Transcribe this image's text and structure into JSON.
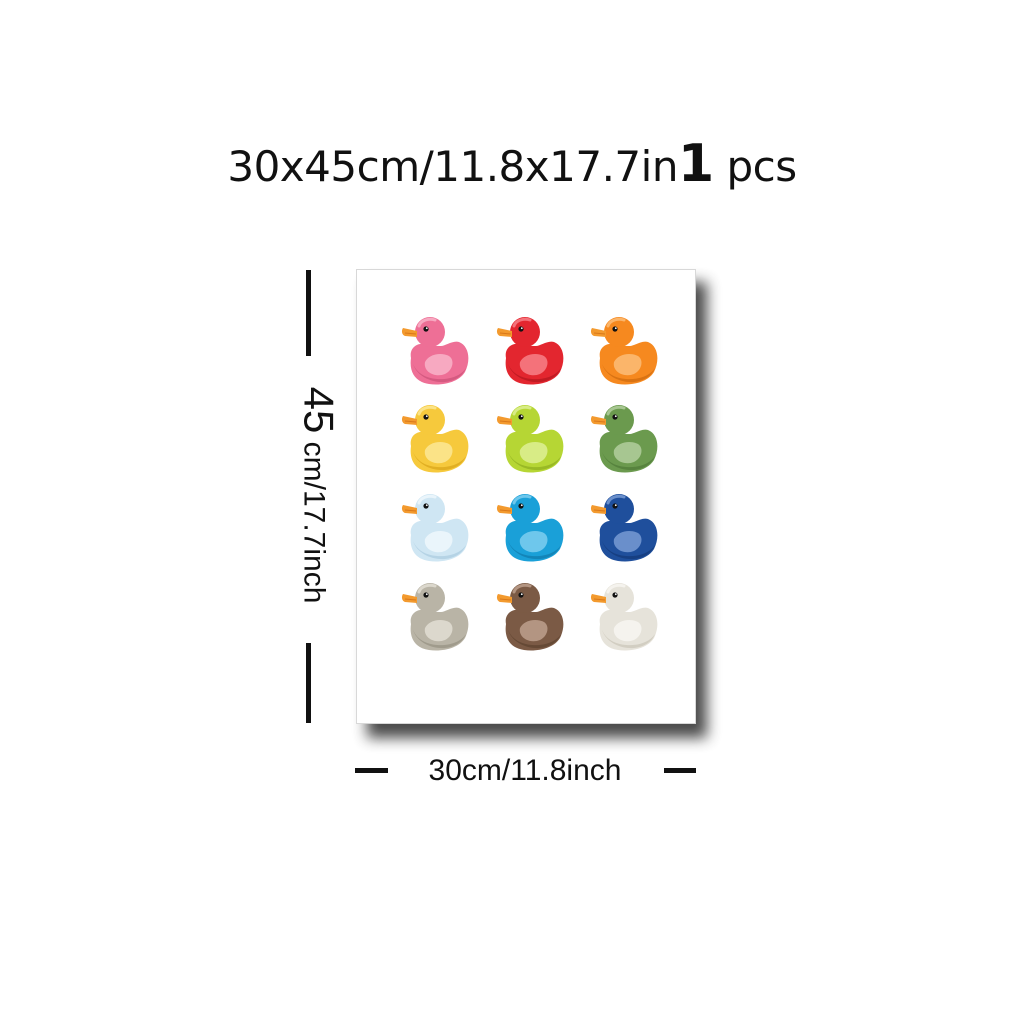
{
  "header": {
    "size_text": "30x45cm/11.8x17.7in",
    "quantity": "1",
    "unit": "pcs"
  },
  "dimensions": {
    "height_value": "45",
    "height_unit_text": "cm/17.7inch",
    "width_text": "30cm/11.8inch"
  },
  "poster": {
    "ducks": [
      {
        "color": "#ee6f96",
        "light": "#f7a9c1",
        "dark": "#c44d73"
      },
      {
        "color": "#e3262f",
        "light": "#f4727a",
        "dark": "#a9141c"
      },
      {
        "color": "#f6891f",
        "light": "#fbb56a",
        "dark": "#c7640b"
      },
      {
        "color": "#f6c93c",
        "light": "#fbe387",
        "dark": "#d49f12"
      },
      {
        "color": "#b6d634",
        "light": "#d8ec86",
        "dark": "#86a51c"
      },
      {
        "color": "#6b9a4e",
        "light": "#a7c691",
        "dark": "#4a7534"
      },
      {
        "color": "#cfe6f3",
        "light": "#eaf5fb",
        "dark": "#a3c7dc"
      },
      {
        "color": "#1aa0d8",
        "light": "#6ec7ec",
        "dark": "#0f73a3"
      },
      {
        "color": "#1f4f9c",
        "light": "#6a8fcb",
        "dark": "#123572"
      },
      {
        "color": "#b9b4a6",
        "light": "#dcd8cd",
        "dark": "#8f8a7c"
      },
      {
        "color": "#7b5a45",
        "light": "#b39582",
        "dark": "#573d2c"
      },
      {
        "color": "#e6e3da",
        "light": "#f5f3ee",
        "dark": "#c4c0b3"
      }
    ],
    "beak_color": "#f39a2e",
    "eye_color": "#111111"
  }
}
